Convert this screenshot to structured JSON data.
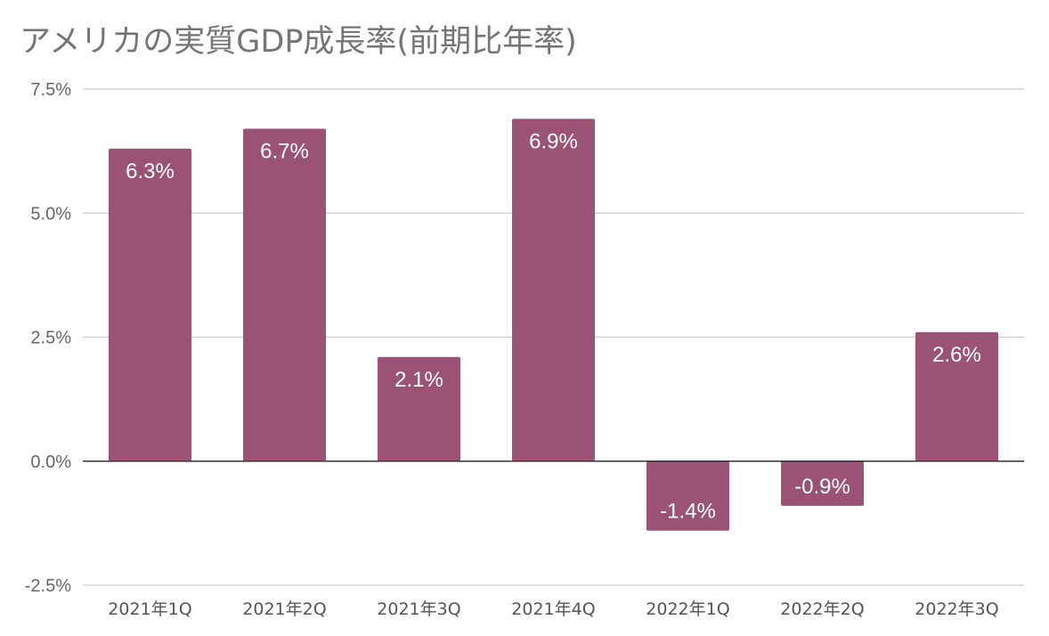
{
  "title": "アメリカの実質GDP成長率(前期比年率)",
  "colors": {
    "bar": "#9a5275",
    "grid": "#cccccc",
    "zero_line": "#333333",
    "title": "#757575",
    "tick_text": "#666666",
    "data_label": "#ffffff"
  },
  "chart_data": {
    "type": "bar",
    "title": "アメリカの実質GDP成長率(前期比年率)",
    "xlabel": "",
    "ylabel": "",
    "categories": [
      "2021年1Q",
      "2021年2Q",
      "2021年3Q",
      "2021年4Q",
      "2022年1Q",
      "2022年2Q",
      "2022年3Q"
    ],
    "values": [
      6.3,
      6.7,
      2.1,
      6.9,
      -1.4,
      -0.9,
      2.6
    ],
    "data_labels": [
      "6.3%",
      "6.7%",
      "2.1%",
      "6.9%",
      "-1.4%",
      "-0.9%",
      "2.6%"
    ],
    "ylim": [
      -2.5,
      7.5
    ],
    "yticks": [
      7.5,
      5.0,
      2.5,
      0.0,
      -2.5
    ],
    "ytick_labels": [
      "7.5%",
      "5.0%",
      "2.5%",
      "0.0%",
      "-2.5%"
    ],
    "grid": true,
    "legend": "none"
  }
}
